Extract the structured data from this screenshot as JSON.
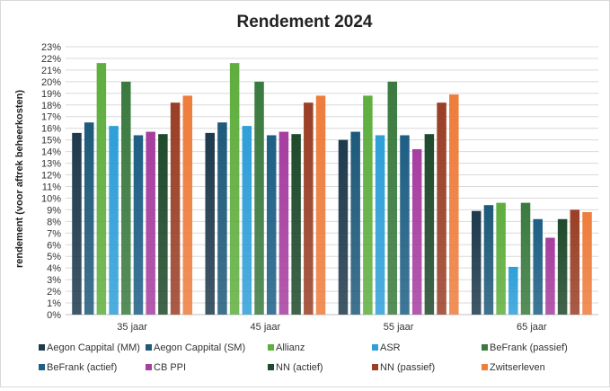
{
  "chart_data": {
    "type": "bar",
    "title": "Rendement 2024",
    "xlabel": "",
    "ylabel": "rendement (voor aftrek beheerkosten)",
    "ylim": [
      0,
      23
    ],
    "ytick_step": 1,
    "ytick_suffix": "%",
    "grid": true,
    "legend_position": "bottom",
    "categories": [
      "35 jaar",
      "45 jaar",
      "55 jaar",
      "65 jaar"
    ],
    "series": [
      {
        "name": "Aegon Cappital (MM)",
        "color": "#1f3a4d",
        "values": [
          15.6,
          15.6,
          15.0,
          8.9
        ]
      },
      {
        "name": "Aegon Cappital (SM)",
        "color": "#1f5a7a",
        "values": [
          16.5,
          16.5,
          15.7,
          9.4
        ]
      },
      {
        "name": "Allianz",
        "color": "#5fae3e",
        "values": [
          21.6,
          21.6,
          18.8,
          9.6
        ]
      },
      {
        "name": "ASR",
        "color": "#2e9fd8",
        "values": [
          16.2,
          16.2,
          15.4,
          4.1
        ]
      },
      {
        "name": "BeFrank (passief)",
        "color": "#3a7a3f",
        "values": [
          20.0,
          20.0,
          20.0,
          9.6
        ]
      },
      {
        "name": "BeFrank (actief)",
        "color": "#1e5f85",
        "values": [
          15.4,
          15.4,
          15.4,
          8.2
        ]
      },
      {
        "name": "CB PPI",
        "color": "#a63ea0",
        "values": [
          15.7,
          15.7,
          14.2,
          6.6
        ]
      },
      {
        "name": "NN (actief)",
        "color": "#1f4a2b",
        "values": [
          15.5,
          15.5,
          15.5,
          8.2
        ]
      },
      {
        "name": "NN (passief)",
        "color": "#9a3f26",
        "values": [
          18.2,
          18.2,
          18.2,
          9.0
        ]
      },
      {
        "name": "Zwitserleven",
        "color": "#ee7d3c",
        "values": [
          18.8,
          18.8,
          18.9,
          8.8
        ]
      }
    ]
  }
}
